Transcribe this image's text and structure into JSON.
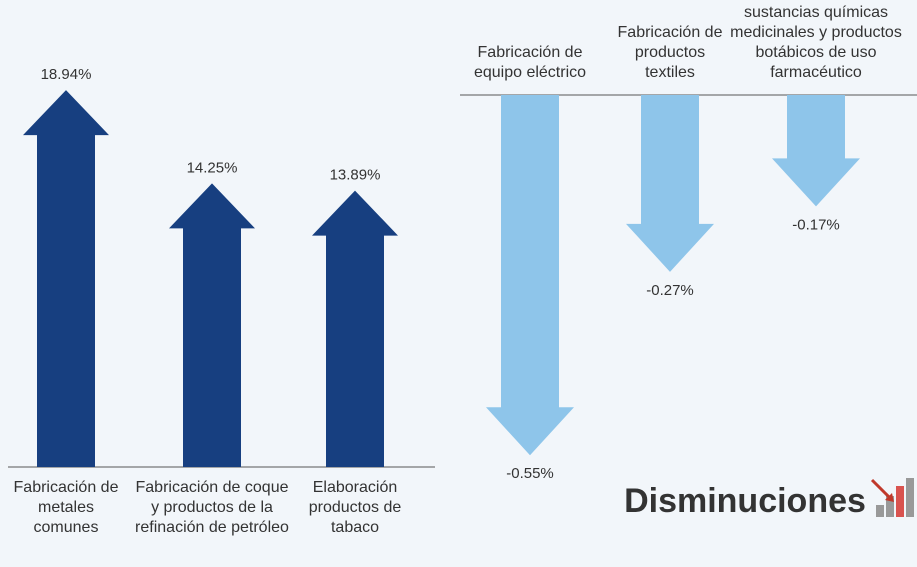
{
  "chart_data": [
    {
      "type": "arrow-bar",
      "categories": [
        "Fabricación de metales comunes",
        "Fabricación de coque y productos de la refinación de petróleo",
        "Elaboración productos de tabaco"
      ],
      "values": [
        18.94,
        14.25,
        13.89
      ],
      "value_labels": [
        "18.94%",
        "14.25%",
        "13.89%"
      ],
      "color": "#173f80",
      "ylim": [
        0,
        20
      ]
    },
    {
      "type": "arrow-bar",
      "categories": [
        "Fabricación de equipo eléctrico",
        "Fabricación de productos textiles",
        "sustancias químicas medicinales y productos botábicos de uso farmacéutico"
      ],
      "values": [
        -0.55,
        -0.27,
        -0.17
      ],
      "value_labels": [
        "-0.55%",
        "-0.27%",
        "-0.17%"
      ],
      "color": "#8ec5ea",
      "ylim": [
        -0.6,
        0
      ],
      "annotation": "Disminuciones"
    }
  ]
}
